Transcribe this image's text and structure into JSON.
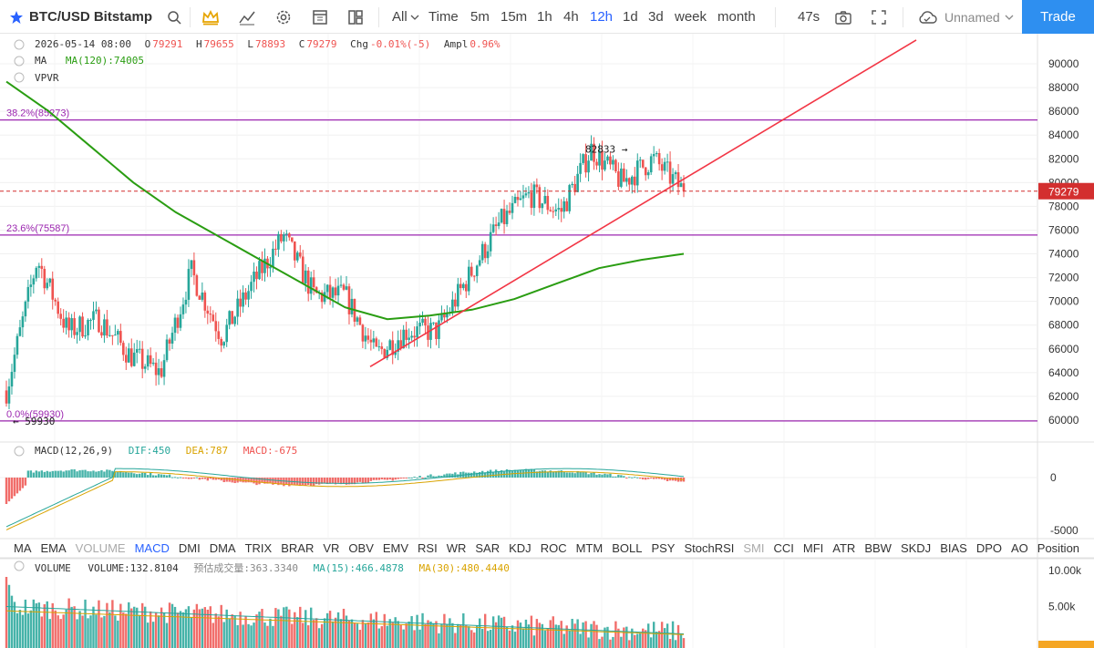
{
  "toolbar": {
    "symbol": "BTC/USD Bitstamp",
    "all_label": "All",
    "timeframes": [
      "Time",
      "5m",
      "15m",
      "1h",
      "4h",
      "12h",
      "1d",
      "3d",
      "week",
      "month"
    ],
    "active_timeframe": "12h",
    "countdown": "47s",
    "layout_name": "Unnamed",
    "trade_label": "Trade",
    "accent": "#2e8ff0"
  },
  "ohlc_info": {
    "date": "2026-05-14 08:00",
    "o_label": "O",
    "o_value": "79291",
    "h_label": "H",
    "h_value": "79655",
    "l_label": "L",
    "l_value": "78893",
    "c_label": "C",
    "c_value": "79279",
    "chg_label": "Chg",
    "chg_value": "-0.01%(-5)",
    "ampl_label": "Ampl",
    "ampl_value": "0.96%"
  },
  "ma_info": {
    "label": "MA",
    "value": "MA(120):74005"
  },
  "vpvr_label": "VPVR",
  "macd_info": {
    "label": "MACD(12,26,9)",
    "dif": "DIF:450",
    "dea": "DEA:787",
    "macd": "MACD:-675"
  },
  "volume_info": {
    "label": "VOLUME",
    "volume": "VOLUME:132.8104",
    "est": "预估成交量:363.3340",
    "ma15": "MA(15):466.4878",
    "ma30": "MA(30):480.4440"
  },
  "indicator_tabs": {
    "items": [
      "MA",
      "EMA",
      "VOLUME",
      "MACD",
      "DMI",
      "DMA",
      "TRIX",
      "BRAR",
      "VR",
      "OBV",
      "EMV",
      "RSI",
      "WR",
      "SAR",
      "KDJ",
      "ROC",
      "MTM",
      "BOLL",
      "PSY",
      "StochRSI",
      "SMI",
      "CCI",
      "MFI",
      "ATR",
      "BBW",
      "SKDJ",
      "BIAS",
      "DPO",
      "AO",
      "Position"
    ],
    "dim": [
      "VOLUME",
      "SMI"
    ],
    "active": "MACD"
  },
  "chart_data": [
    {
      "type": "candlestick",
      "title": "",
      "y_ticks": [
        60000,
        62000,
        64000,
        66000,
        68000,
        70000,
        72000,
        74000,
        76000,
        78000,
        80000,
        82000,
        84000,
        86000,
        88000,
        90000
      ],
      "ylim": [
        59300,
        92000
      ],
      "colors": {
        "up": "#26a69a",
        "down": "#ef5350",
        "ma": "#2a9d12",
        "fib": "#9c27b0",
        "trend": "#f23645"
      },
      "price_anchor_path": [
        62500,
        73500,
        67500,
        68500,
        65500,
        64000,
        72500,
        67000,
        71500,
        75500,
        70500,
        70500,
        65500,
        67500,
        67500,
        72000,
        76500,
        79000,
        77500,
        82833,
        80000,
        82000,
        79279
      ],
      "ma120_path": [
        88500,
        86000,
        83000,
        80000,
        77500,
        75500,
        73500,
        71500,
        69500,
        68500,
        68800,
        69300,
        70200,
        71500,
        72800,
        73500,
        74005
      ],
      "fibonacci": [
        {
          "label": "38.2%(85273)",
          "value": 85273
        },
        {
          "label": "23.6%(75587)",
          "value": 75587
        },
        {
          "label": "0.0%(59930)",
          "value": 59930
        }
      ],
      "trendline": {
        "from": 64500,
        "to": 92000
      },
      "annotations": [
        {
          "text": "82833 →",
          "value": 82833
        },
        {
          "text": "← 59930",
          "value": 59930
        }
      ],
      "last_price": {
        "label": "79279",
        "value": 79279
      }
    },
    {
      "type": "bar",
      "title": "MACD(12,26,9)",
      "y_ticks": [
        0,
        -5000
      ],
      "y_tick_labels": [
        "0",
        "-5000"
      ],
      "ylim": [
        -6000,
        3000
      ]
    },
    {
      "type": "bar",
      "title": "VOLUME",
      "y_ticks": [
        10000,
        5000
      ],
      "y_tick_labels": [
        "10.00k",
        "5.00k"
      ],
      "ylim": [
        0,
        11000
      ]
    }
  ]
}
